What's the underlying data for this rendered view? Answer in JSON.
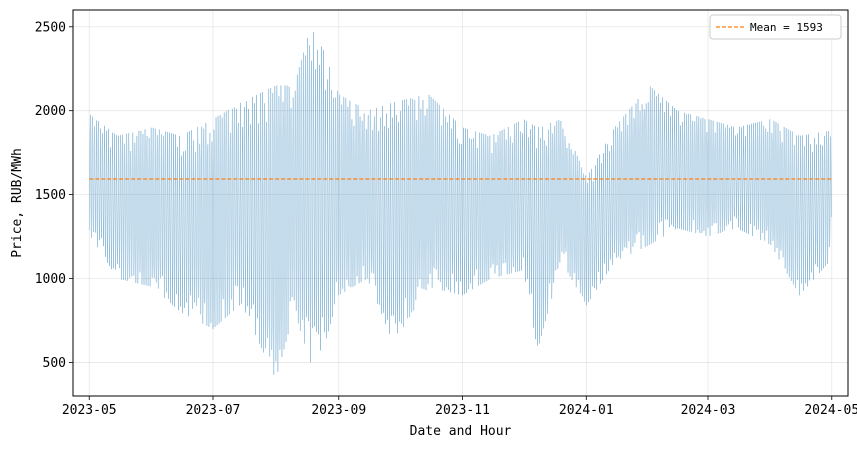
{
  "chart_data": {
    "type": "line",
    "title": "",
    "xlabel": "Date and Hour",
    "ylabel": "Price, RUB/MWh",
    "x_range": [
      "2023-04-23",
      "2024-05-09"
    ],
    "ylim": [
      300,
      2600
    ],
    "grid": true,
    "legend_position": "top-right",
    "x_ticks": [
      {
        "date": "2023-05-01",
        "label": "2023-05"
      },
      {
        "date": "2023-07-01",
        "label": "2023-07"
      },
      {
        "date": "2023-09-01",
        "label": "2023-09"
      },
      {
        "date": "2023-11-01",
        "label": "2023-11"
      },
      {
        "date": "2024-01-01",
        "label": "2024-01"
      },
      {
        "date": "2024-03-01",
        "label": "2024-03"
      },
      {
        "date": "2024-05-01",
        "label": "2024-05"
      }
    ],
    "y_ticks": [
      500,
      1000,
      1500,
      2000,
      2500
    ],
    "series": [
      {
        "kind": "hourly-price",
        "color": "#1f77b4",
        "date_range": [
          "2023-05-01",
          "2024-04-30"
        ],
        "daily_range": [
          {
            "date": "2023-05-01",
            "min": 1260,
            "max": 1980
          },
          {
            "date": "2023-05-15",
            "min": 1000,
            "max": 1850
          },
          {
            "date": "2023-06-01",
            "min": 950,
            "max": 1900
          },
          {
            "date": "2023-06-15",
            "min": 800,
            "max": 1850
          },
          {
            "date": "2023-07-01",
            "min": 700,
            "max": 1950
          },
          {
            "date": "2023-07-15",
            "min": 850,
            "max": 2050
          },
          {
            "date": "2023-08-01",
            "min": 400,
            "max": 2150
          },
          {
            "date": "2023-08-10",
            "min": 800,
            "max": 2150
          },
          {
            "date": "2023-08-18",
            "min": 500,
            "max": 2500
          },
          {
            "date": "2023-08-25",
            "min": 600,
            "max": 2350
          },
          {
            "date": "2023-09-01",
            "min": 900,
            "max": 2100
          },
          {
            "date": "2023-09-15",
            "min": 1000,
            "max": 2000
          },
          {
            "date": "2023-09-28",
            "min": 610,
            "max": 2050
          },
          {
            "date": "2023-10-15",
            "min": 950,
            "max": 2100
          },
          {
            "date": "2023-11-01",
            "min": 900,
            "max": 1900
          },
          {
            "date": "2023-11-15",
            "min": 1000,
            "max": 1850
          },
          {
            "date": "2023-12-01",
            "min": 1050,
            "max": 1950
          },
          {
            "date": "2023-12-08",
            "min": 570,
            "max": 1900
          },
          {
            "date": "2023-12-20",
            "min": 1100,
            "max": 1950
          },
          {
            "date": "2024-01-01",
            "min": 840,
            "max": 1600
          },
          {
            "date": "2024-01-15",
            "min": 1100,
            "max": 1900
          },
          {
            "date": "2024-02-01",
            "min": 1200,
            "max": 2150
          },
          {
            "date": "2024-02-15",
            "min": 1300,
            "max": 2000
          },
          {
            "date": "2024-03-01",
            "min": 1250,
            "max": 1950
          },
          {
            "date": "2024-03-15",
            "min": 1300,
            "max": 1900
          },
          {
            "date": "2024-04-01",
            "min": 1200,
            "max": 1950
          },
          {
            "date": "2024-04-15",
            "min": 900,
            "max": 1850
          },
          {
            "date": "2024-04-30",
            "min": 1100,
            "max": 1880
          }
        ]
      },
      {
        "name": "Mean = 1593",
        "kind": "mean-line",
        "color": "#ff7f0e",
        "style": "dashed",
        "value": 1593,
        "date_range": [
          "2023-05-01",
          "2024-04-30"
        ]
      }
    ]
  }
}
